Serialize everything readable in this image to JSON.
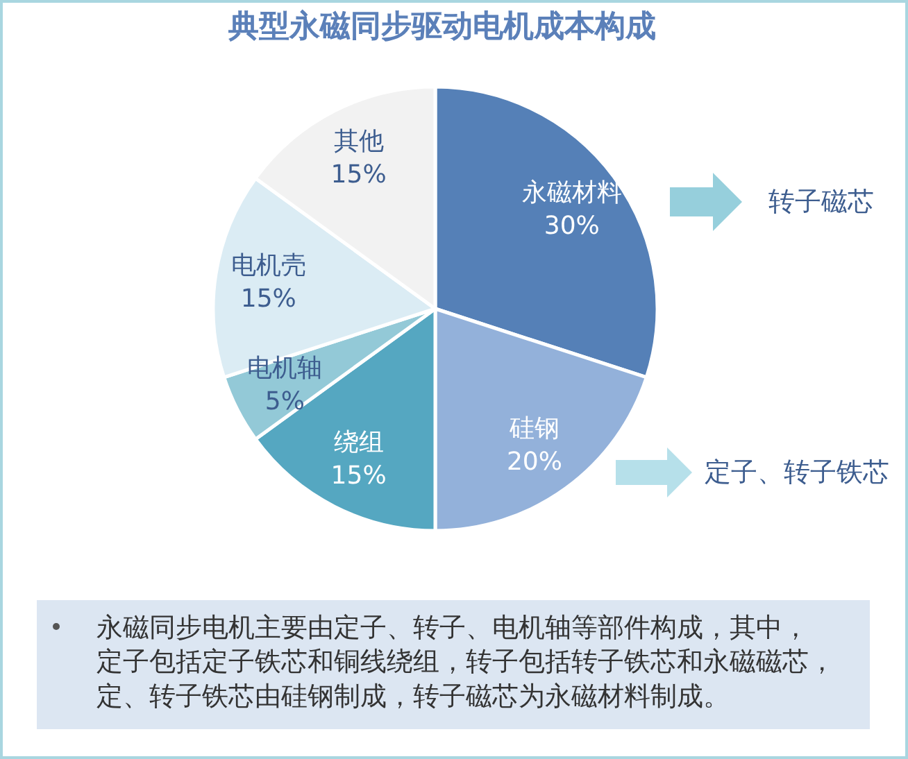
{
  "chart_data": {
    "type": "pie",
    "title": "典型永磁同步驱动电机成本构成",
    "categories": [
      "永磁材料",
      "硅钢",
      "绕组",
      "电机轴",
      "电机壳",
      "其他"
    ],
    "values": [
      30,
      20,
      15,
      5,
      15,
      15
    ],
    "colors": [
      "#5580b7",
      "#93b1da",
      "#55a7c1",
      "#93c9d7",
      "#dbecf4",
      "#f2f2f2"
    ],
    "value_labels": [
      "30%",
      "20%",
      "15%",
      "5%",
      "15%",
      "15%"
    ],
    "annotations": [
      "转子磁芯",
      "定子、转子铁芯",
      "永磁同步电机主要由定子、转子、电机轴等部件构成，其中，定子包括定子铁芯和铜线绕组，转子包括转子铁芯和永磁磁芯，定、转子铁芯由硅钢制成，转子磁芯为永磁材料制成。"
    ]
  }
}
